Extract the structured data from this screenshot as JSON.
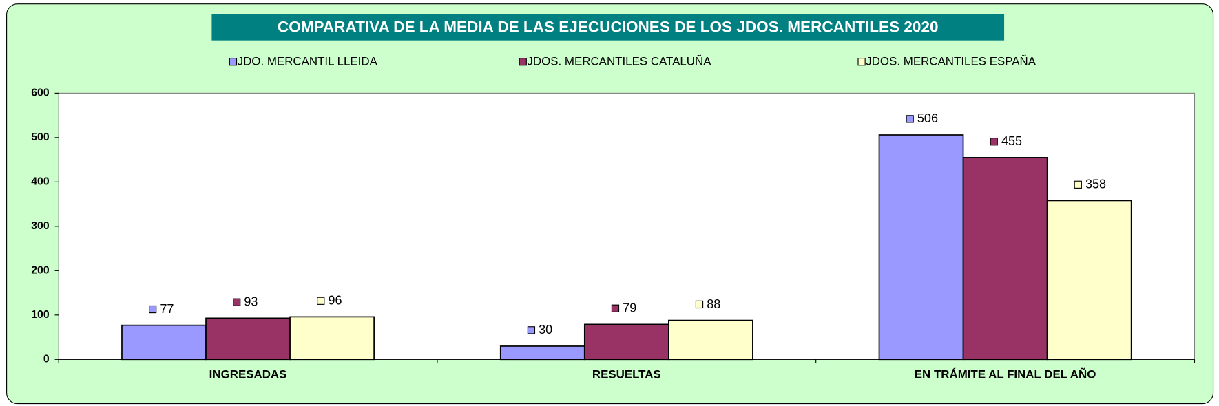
{
  "chart_data": {
    "type": "bar",
    "title": "COMPARATIVA DE LA MEDIA DE LAS EJECUCIONES  DE LOS JDOS. MERCANTILES 2020",
    "categories": [
      "INGRESADAS",
      "RESUELTAS",
      "EN TRÁMITE AL FINAL DEL AÑO"
    ],
    "series": [
      {
        "name": "JDO. MERCANTIL LLEIDA",
        "color": "#9999ff",
        "values": [
          77,
          30,
          506
        ]
      },
      {
        "name": "JDOS. MERCANTILES CATALUÑA",
        "color": "#993366",
        "values": [
          93,
          79,
          455
        ]
      },
      {
        "name": "JDOS. MERCANTILES ESPAÑA",
        "color": "#ffffcc",
        "values": [
          96,
          88,
          358
        ]
      }
    ],
    "ylim": [
      0,
      600
    ],
    "yticks": [
      0,
      100,
      200,
      300,
      400,
      500,
      600
    ],
    "grid": false,
    "legend": "top"
  }
}
